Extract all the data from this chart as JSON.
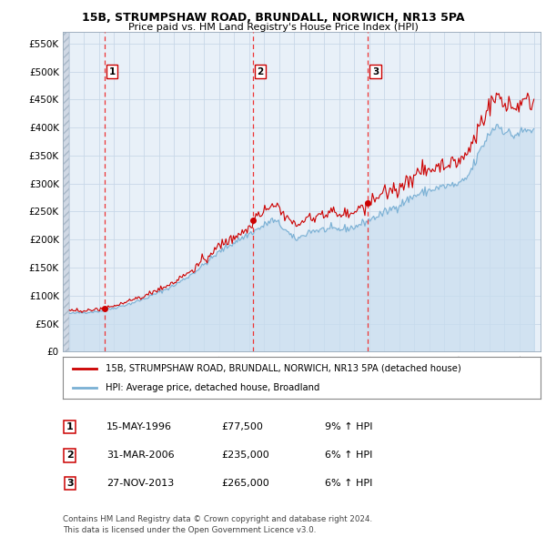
{
  "title1": "15B, STRUMPSHAW ROAD, BRUNDALL, NORWICH, NR13 5PA",
  "title2": "Price paid vs. HM Land Registry's House Price Index (HPI)",
  "sale_prices": [
    77500,
    235000,
    265000
  ],
  "sale_years": [
    1996.375,
    2006.25,
    2013.917
  ],
  "sale_labels": [
    "1",
    "2",
    "3"
  ],
  "legend_line1": "15B, STRUMPSHAW ROAD, BRUNDALL, NORWICH, NR13 5PA (detached house)",
  "legend_line2": "HPI: Average price, detached house, Broadland",
  "table_rows": [
    [
      "1",
      "15-MAY-1996",
      "£77,500",
      "9% ↑ HPI"
    ],
    [
      "2",
      "31-MAR-2006",
      "£235,000",
      "6% ↑ HPI"
    ],
    [
      "3",
      "27-NOV-2013",
      "£265,000",
      "6% ↑ HPI"
    ]
  ],
  "footnote1": "Contains HM Land Registry data © Crown copyright and database right 2024.",
  "footnote2": "This data is licensed under the Open Government Licence v3.0.",
  "ylim": [
    0,
    570000
  ],
  "yticks": [
    0,
    50000,
    100000,
    150000,
    200000,
    250000,
    300000,
    350000,
    400000,
    450000,
    500000,
    550000
  ],
  "ytick_labels": [
    "£0",
    "£50K",
    "£100K",
    "£150K",
    "£200K",
    "£250K",
    "£300K",
    "£350K",
    "£400K",
    "£450K",
    "£500K",
    "£550K"
  ],
  "hpi_color": "#7ab0d4",
  "sale_color": "#cc0000",
  "vline_color": "#ee3333",
  "grid_color": "#c8d8e8",
  "bg_plot": "#e8f0f8",
  "bg_white": "#ffffff",
  "xlim_left": 1993.6,
  "xlim_right": 2025.4
}
